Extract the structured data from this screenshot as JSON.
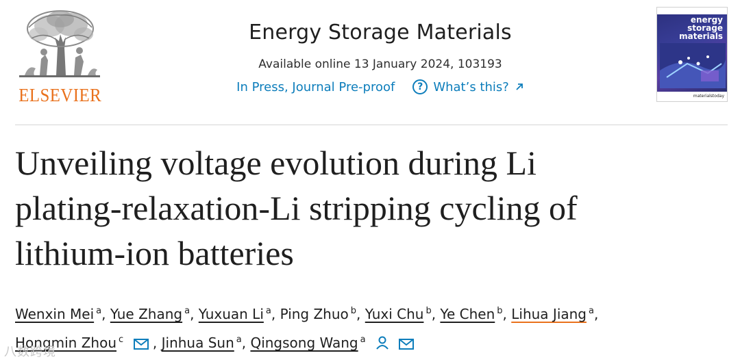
{
  "publisher": {
    "logo_wordmark": "ELSEVIER",
    "brand_color": "#e9711c"
  },
  "header": {
    "journal_title": "Energy Storage Materials",
    "availability": "Available online 13 January 2024, 103193",
    "status_link": "In Press, Journal Pre-proof",
    "help_link": "What’s this?",
    "link_color": "#0c7dbb"
  },
  "cover": {
    "title_line1": "energy",
    "title_line2": "storage",
    "title_line3": "materials",
    "footer": "materialstoday"
  },
  "article": {
    "title_line1": "Unveiling voltage evolution during Li",
    "title_line2": "plating-relaxation-Li stripping cycling of",
    "title_line3": "lithium-ion batteries"
  },
  "authors": [
    {
      "name": "Wenxin Mei",
      "aff": "a"
    },
    {
      "name": "Yue Zhang",
      "aff": "a"
    },
    {
      "name": "Yuxuan Li",
      "aff": "a"
    },
    {
      "name": "Ping Zhuo",
      "aff": "b"
    },
    {
      "name": "Yuxi Chu",
      "aff": "b"
    },
    {
      "name": "Ye Chen",
      "aff": "b"
    },
    {
      "name": "Lihua Jiang",
      "aff": "a"
    },
    {
      "name": "Hongmin Zhou",
      "aff": "c"
    },
    {
      "name": "Jinhua Sun",
      "aff": "a"
    },
    {
      "name": "Qingsong Wang",
      "aff": "a"
    }
  ],
  "icons": {
    "email": "envelope-icon",
    "person": "person-icon",
    "help": "question-circle-icon",
    "external": "arrow-up-right-icon"
  },
  "watermark": "八数跨境"
}
